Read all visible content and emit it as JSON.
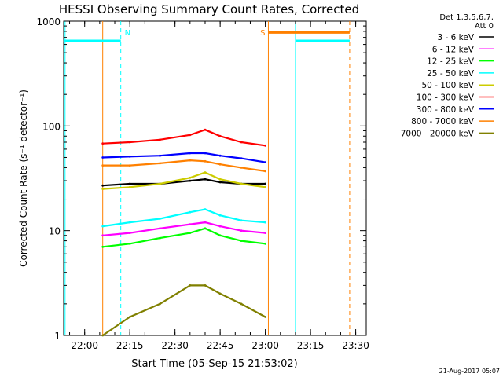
{
  "chart_data": {
    "type": "line",
    "title": "HESSI Observing Summary Count Rates, Corrected",
    "xlabel": "Start Time (05-Sep-15 21:53:02)",
    "ylabel": "Corrected Count Rate (s⁻¹ detector⁻¹)",
    "yscale": "log",
    "ylim": [
      1,
      1000
    ],
    "xlim": [
      "21:53:02",
      "23:33:30"
    ],
    "x_ticks": [
      "22:00",
      "22:15",
      "22:30",
      "22:45",
      "23:00",
      "23:15",
      "23:30"
    ],
    "y_ticks": [
      "1",
      "10",
      "100",
      "1000"
    ],
    "legend_header": [
      "Det 1,3,5,6,7,",
      "Att 0"
    ],
    "legend_position": "top-right outside",
    "series": [
      {
        "name": "3 - 6 keV",
        "color": "#000000",
        "x": [
          "22:06",
          "22:15",
          "22:25",
          "22:35",
          "22:40",
          "22:45",
          "22:52",
          "23:00"
        ],
        "values": [
          27,
          28,
          28,
          30,
          31,
          29,
          28,
          28
        ]
      },
      {
        "name": "6 - 12 keV",
        "color": "#ff00ff",
        "x": [
          "22:06",
          "22:15",
          "22:25",
          "22:35",
          "22:40",
          "22:45",
          "22:52",
          "23:00"
        ],
        "values": [
          9,
          9.5,
          10.5,
          11.5,
          12,
          11,
          10,
          9.5
        ]
      },
      {
        "name": "12 - 25 keV",
        "color": "#00ff00",
        "x": [
          "22:06",
          "22:15",
          "22:25",
          "22:35",
          "22:40",
          "22:45",
          "22:52",
          "23:00"
        ],
        "values": [
          7,
          7.5,
          8.5,
          9.5,
          10.5,
          9,
          8,
          7.5
        ]
      },
      {
        "name": "25 - 50 keV",
        "color": "#00ffff",
        "x": [
          "22:06",
          "22:15",
          "22:25",
          "22:35",
          "22:40",
          "22:45",
          "22:52",
          "23:00"
        ],
        "values": [
          11,
          12,
          13,
          15,
          16,
          14,
          12.5,
          12
        ]
      },
      {
        "name": "50 - 100 keV",
        "color": "#cccc00",
        "x": [
          "22:06",
          "22:15",
          "22:25",
          "22:35",
          "22:40",
          "22:45",
          "22:52",
          "23:00"
        ],
        "values": [
          25,
          26,
          28,
          32,
          36,
          31,
          28,
          26
        ]
      },
      {
        "name": "100 - 300 keV",
        "color": "#ff0000",
        "x": [
          "22:06",
          "22:15",
          "22:25",
          "22:35",
          "22:40",
          "22:45",
          "22:52",
          "23:00"
        ],
        "values": [
          68,
          70,
          74,
          82,
          92,
          80,
          70,
          65
        ]
      },
      {
        "name": "300 - 800 keV",
        "color": "#0000ff",
        "x": [
          "22:06",
          "22:15",
          "22:25",
          "22:35",
          "22:40",
          "22:45",
          "22:52",
          "23:00"
        ],
        "values": [
          50,
          51,
          52,
          55,
          55,
          52,
          49,
          45
        ]
      },
      {
        "name": "800 - 7000 keV",
        "color": "#ff8000",
        "x": [
          "22:06",
          "22:15",
          "22:25",
          "22:35",
          "22:40",
          "22:45",
          "22:52",
          "23:00"
        ],
        "values": [
          42,
          42,
          44,
          47,
          46,
          43,
          40,
          37
        ]
      },
      {
        "name": "7000 - 20000 keV",
        "color": "#808000",
        "x": [
          "22:06",
          "22:15",
          "22:25",
          "22:35",
          "22:40",
          "22:45",
          "22:52",
          "23:00"
        ],
        "values": [
          1,
          1.5,
          2,
          3,
          3,
          2.5,
          2,
          1.5
        ]
      }
    ],
    "annotations": [
      {
        "text": "N",
        "color": "#00ffff",
        "x": "22:12"
      },
      {
        "text": "S",
        "color": "#ff8000",
        "x": "23:01"
      }
    ],
    "night_bar": {
      "color": "#00ffff",
      "level": 650,
      "intervals": [
        [
          "21:53",
          "22:12"
        ],
        [
          "23:10",
          "23:28"
        ]
      ]
    },
    "saa_bar": {
      "color": "#ff8000",
      "level": 780,
      "intervals": [
        [
          "23:01",
          "23:28"
        ]
      ]
    },
    "markers": [
      {
        "color": "#00ffff",
        "style": "solid",
        "x": "21:53:30"
      },
      {
        "color": "#ff8000",
        "style": "solid",
        "x": "22:06"
      },
      {
        "color": "#00ffff",
        "style": "dashed",
        "x": "22:12"
      },
      {
        "color": "#ff8000",
        "style": "solid",
        "x": "23:01"
      },
      {
        "color": "#00ffff",
        "style": "solid",
        "x": "23:10"
      },
      {
        "color": "#ff8000",
        "style": "dashed",
        "x": "23:28"
      }
    ]
  },
  "footer": {
    "timestamp": "21-Aug-2017 05:07"
  }
}
